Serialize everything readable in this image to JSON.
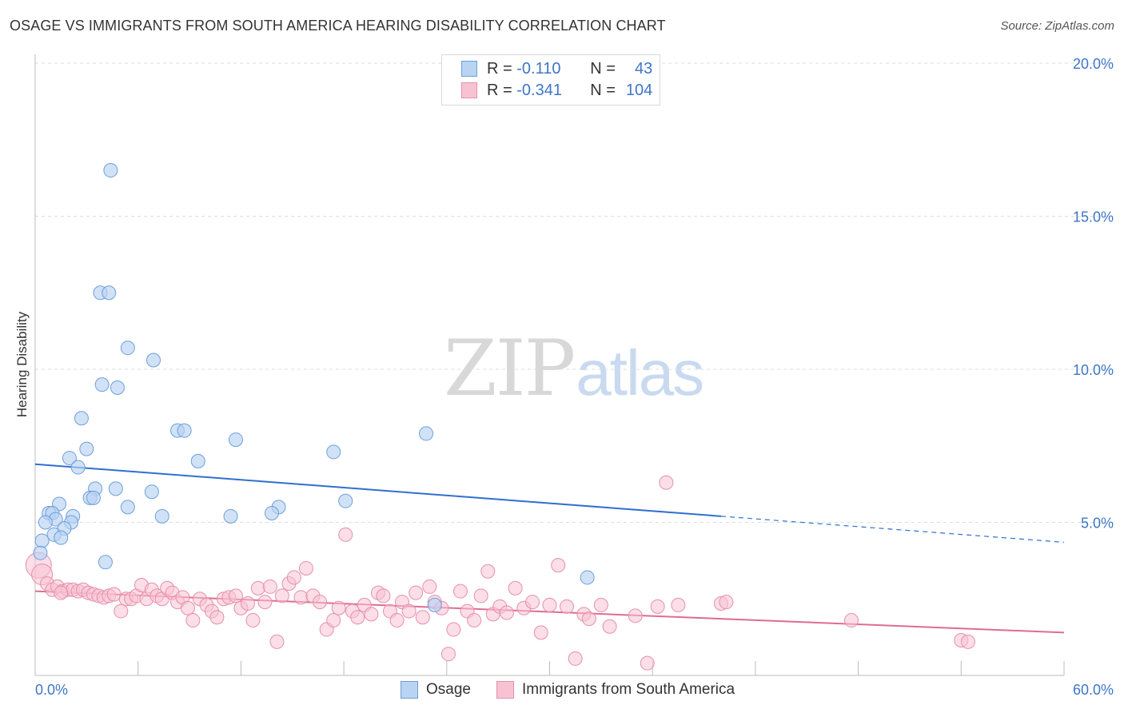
{
  "header": {
    "title": "OSAGE VS IMMIGRANTS FROM SOUTH AMERICA HEARING DISABILITY CORRELATION CHART",
    "source": "Source: ZipAtlas.com"
  },
  "watermark": {
    "zip": "ZIP",
    "atlas": "atlas"
  },
  "legend_top": {
    "rows": [
      {
        "r_label": "R =",
        "r_value": "-0.110",
        "n_label": "N =",
        "n_value": "43"
      },
      {
        "r_label": "R =",
        "r_value": "-0.341",
        "n_label": "N =",
        "n_value": "104"
      }
    ]
  },
  "legend_bottom": {
    "items": [
      "Osage",
      "Immigrants from South America"
    ]
  },
  "colors": {
    "blue_fill": "#b9d3f2",
    "blue_stroke": "#6d9fdc",
    "blue_line": "#2f6fcf",
    "pink_fill": "#f7c3d3",
    "pink_stroke": "#e78fab",
    "pink_line": "#e06b94",
    "axis_text": "#3e76c7",
    "grid": "#dddddd"
  },
  "chart_data": {
    "type": "scatter",
    "title": "OSAGE VS IMMIGRANTS FROM SOUTH AMERICA HEARING DISABILITY CORRELATION CHART",
    "xlabel": "",
    "ylabel": "Hearing Disability",
    "xlim": [
      0,
      60
    ],
    "ylim": [
      0,
      20
    ],
    "x_tick_labels": [
      "0.0%",
      "60.0%"
    ],
    "y_ticks": [
      5,
      10,
      15,
      20
    ],
    "y_tick_labels": [
      "5.0%",
      "10.0%",
      "15.0%",
      "20.0%"
    ],
    "grid": true,
    "legend_position": "top-center",
    "series": [
      {
        "name": "Osage",
        "r": -0.11,
        "n": 43,
        "trend": {
          "x0": 0,
          "y0": 6.9,
          "x1": 40,
          "y1": 5.2,
          "dashed_to_x": 60,
          "dashed_to_y": 4.35
        },
        "points": [
          [
            4.4,
            16.5
          ],
          [
            3.8,
            12.5
          ],
          [
            4.3,
            12.5
          ],
          [
            5.4,
            10.7
          ],
          [
            6.9,
            10.3
          ],
          [
            3.9,
            9.5
          ],
          [
            4.8,
            9.4
          ],
          [
            2.7,
            8.4
          ],
          [
            8.3,
            8.0
          ],
          [
            8.7,
            8.0
          ],
          [
            11.7,
            7.7
          ],
          [
            17.4,
            7.3
          ],
          [
            22.8,
            7.9
          ],
          [
            3.0,
            7.4
          ],
          [
            9.5,
            7.0
          ],
          [
            2.0,
            7.1
          ],
          [
            2.5,
            6.8
          ],
          [
            3.5,
            6.1
          ],
          [
            4.7,
            6.1
          ],
          [
            6.8,
            6.0
          ],
          [
            3.2,
            5.8
          ],
          [
            3.4,
            5.8
          ],
          [
            5.4,
            5.5
          ],
          [
            14.2,
            5.5
          ],
          [
            18.1,
            5.7
          ],
          [
            1.4,
            5.6
          ],
          [
            0.8,
            5.3
          ],
          [
            1.0,
            5.3
          ],
          [
            2.2,
            5.2
          ],
          [
            7.4,
            5.2
          ],
          [
            11.4,
            5.2
          ],
          [
            13.8,
            5.3
          ],
          [
            1.2,
            5.1
          ],
          [
            2.1,
            5.0
          ],
          [
            0.6,
            5.0
          ],
          [
            1.7,
            4.8
          ],
          [
            1.1,
            4.6
          ],
          [
            1.5,
            4.5
          ],
          [
            0.4,
            4.4
          ],
          [
            0.3,
            4.0
          ],
          [
            4.1,
            3.7
          ],
          [
            32.2,
            3.2
          ],
          [
            23.3,
            2.3
          ]
        ]
      },
      {
        "name": "Immigrants from South America",
        "r": -0.341,
        "n": 104,
        "trend": {
          "x0": 0,
          "y0": 2.75,
          "x1": 60,
          "y1": 1.4
        },
        "points": [
          [
            0.2,
            3.6
          ],
          [
            0.4,
            3.3
          ],
          [
            0.7,
            3.0
          ],
          [
            1.0,
            2.8
          ],
          [
            1.3,
            2.9
          ],
          [
            1.6,
            2.75
          ],
          [
            1.9,
            2.8
          ],
          [
            2.2,
            2.8
          ],
          [
            2.5,
            2.75
          ],
          [
            2.8,
            2.8
          ],
          [
            3.1,
            2.7
          ],
          [
            3.4,
            2.65
          ],
          [
            3.7,
            2.6
          ],
          [
            4.0,
            2.55
          ],
          [
            4.3,
            2.6
          ],
          [
            4.6,
            2.65
          ],
          [
            5.0,
            2.1
          ],
          [
            5.3,
            2.5
          ],
          [
            5.6,
            2.5
          ],
          [
            5.9,
            2.6
          ],
          [
            6.2,
            2.95
          ],
          [
            6.5,
            2.5
          ],
          [
            6.8,
            2.8
          ],
          [
            7.1,
            2.6
          ],
          [
            7.4,
            2.5
          ],
          [
            7.7,
            2.85
          ],
          [
            8.0,
            2.7
          ],
          [
            8.3,
            2.4
          ],
          [
            8.6,
            2.55
          ],
          [
            8.9,
            2.2
          ],
          [
            9.2,
            1.8
          ],
          [
            9.6,
            2.5
          ],
          [
            10.0,
            2.3
          ],
          [
            10.3,
            2.1
          ],
          [
            10.6,
            1.9
          ],
          [
            11.0,
            2.5
          ],
          [
            11.3,
            2.55
          ],
          [
            11.7,
            2.6
          ],
          [
            12.0,
            2.2
          ],
          [
            12.4,
            2.35
          ],
          [
            12.7,
            1.8
          ],
          [
            13.0,
            2.85
          ],
          [
            13.4,
            2.4
          ],
          [
            13.7,
            2.9
          ],
          [
            14.1,
            1.1
          ],
          [
            14.4,
            2.6
          ],
          [
            14.8,
            3.0
          ],
          [
            15.1,
            3.2
          ],
          [
            15.5,
            2.55
          ],
          [
            15.8,
            3.5
          ],
          [
            16.2,
            2.6
          ],
          [
            16.6,
            2.4
          ],
          [
            17.0,
            1.5
          ],
          [
            17.4,
            1.8
          ],
          [
            17.7,
            2.2
          ],
          [
            18.1,
            4.6
          ],
          [
            18.5,
            2.1
          ],
          [
            18.8,
            1.9
          ],
          [
            19.2,
            2.3
          ],
          [
            19.6,
            2.0
          ],
          [
            20.0,
            2.7
          ],
          [
            20.3,
            2.6
          ],
          [
            20.7,
            2.1
          ],
          [
            21.1,
            1.8
          ],
          [
            21.4,
            2.4
          ],
          [
            21.8,
            2.1
          ],
          [
            22.2,
            2.7
          ],
          [
            22.6,
            1.9
          ],
          [
            23.0,
            2.9
          ],
          [
            23.3,
            2.4
          ],
          [
            23.7,
            2.2
          ],
          [
            24.1,
            0.7
          ],
          [
            24.4,
            1.5
          ],
          [
            24.8,
            2.75
          ],
          [
            25.2,
            2.1
          ],
          [
            25.6,
            1.8
          ],
          [
            26.0,
            2.6
          ],
          [
            26.4,
            3.4
          ],
          [
            26.7,
            2.0
          ],
          [
            27.1,
            2.25
          ],
          [
            27.5,
            2.05
          ],
          [
            28.0,
            2.85
          ],
          [
            28.5,
            2.2
          ],
          [
            29.0,
            2.4
          ],
          [
            29.5,
            1.4
          ],
          [
            30.0,
            2.3
          ],
          [
            30.5,
            3.6
          ],
          [
            31.0,
            2.25
          ],
          [
            31.5,
            0.55
          ],
          [
            32.0,
            2.0
          ],
          [
            32.3,
            1.85
          ],
          [
            33.0,
            2.3
          ],
          [
            33.5,
            1.6
          ],
          [
            35.0,
            1.95
          ],
          [
            35.7,
            0.4
          ],
          [
            36.3,
            2.25
          ],
          [
            36.8,
            6.3
          ],
          [
            37.5,
            2.3
          ],
          [
            40.0,
            2.35
          ],
          [
            40.3,
            2.4
          ],
          [
            47.6,
            1.8
          ],
          [
            54.0,
            1.15
          ],
          [
            54.4,
            1.1
          ],
          [
            1.5,
            2.7
          ]
        ]
      }
    ]
  }
}
